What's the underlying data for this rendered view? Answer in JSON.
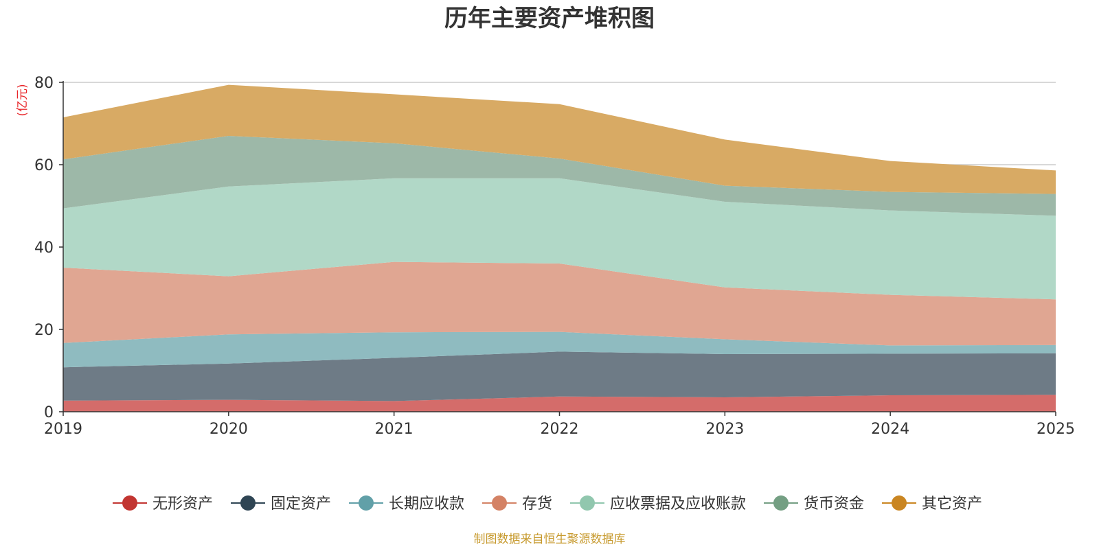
{
  "chart_data": {
    "type": "area",
    "stacked": true,
    "title": "历年主要资产堆积图",
    "ylabel": "(亿元)",
    "xlabel": "",
    "x": [
      "2019",
      "2020",
      "2021",
      "2022",
      "2023",
      "2024",
      "2025"
    ],
    "ylim": [
      0,
      80
    ],
    "yticks": [
      0,
      20,
      40,
      60,
      80
    ],
    "grid": true,
    "legend_position": "bottom",
    "series": [
      {
        "name": "无形资产",
        "color": "#c23531",
        "fill": "#d46c6a",
        "values": [
          2.7,
          2.9,
          2.6,
          3.7,
          3.5,
          4.0,
          4.1
        ]
      },
      {
        "name": "固定资产",
        "color": "#2f4554",
        "fill": "#6e7b86",
        "values": [
          8.1,
          8.8,
          10.5,
          10.9,
          10.5,
          10.1,
          10.1
        ]
      },
      {
        "name": "长期应收款",
        "color": "#61a0a8",
        "fill": "#8fbbc0",
        "values": [
          5.9,
          7.1,
          6.2,
          4.8,
          3.6,
          2.0,
          2.0
        ]
      },
      {
        "name": "存货",
        "color": "#d48265",
        "fill": "#e0a692",
        "values": [
          18.3,
          14.1,
          17.1,
          16.6,
          12.6,
          12.3,
          11.1
        ]
      },
      {
        "name": "应收票据及应收账款",
        "color": "#91c7ae",
        "fill": "#b1d8c7",
        "values": [
          14.4,
          21.8,
          20.3,
          20.7,
          20.8,
          20.5,
          20.3
        ]
      },
      {
        "name": "货币资金",
        "color": "#749f83",
        "fill": "#9db8a8",
        "values": [
          11.9,
          12.3,
          8.5,
          4.8,
          3.9,
          4.5,
          5.3
        ]
      },
      {
        "name": "其它资产",
        "color": "#ca8622",
        "fill": "#d8aa64",
        "values": [
          10.2,
          12.4,
          11.9,
          13.2,
          11.2,
          7.5,
          5.7
        ]
      }
    ]
  },
  "source": "制图数据来自恒生聚源数据库"
}
